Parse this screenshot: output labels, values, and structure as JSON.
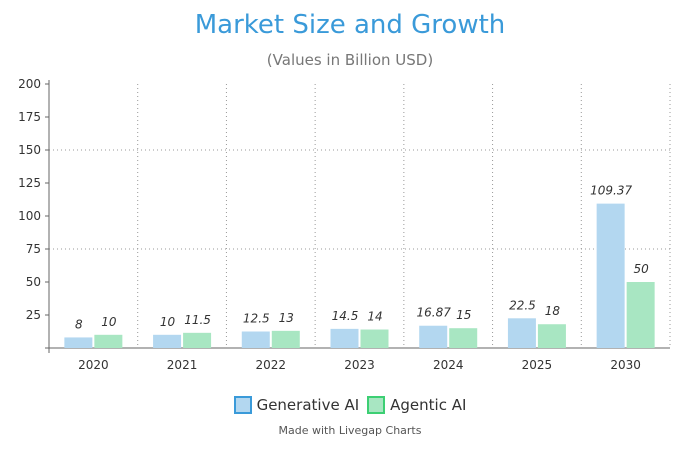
{
  "chart_data": {
    "type": "bar",
    "title": "Market Size and Growth",
    "subtitle": "(Values in Billion USD)",
    "categories": [
      "2020",
      "2021",
      "2022",
      "2023",
      "2024",
      "2025",
      "2030"
    ],
    "series": [
      {
        "name": "Generative AI",
        "values": [
          8,
          10,
          12.5,
          14.5,
          16.87,
          22.5,
          109.37
        ],
        "color": "#b3d7f0",
        "border": "#3a9ad9"
      },
      {
        "name": "Agentic AI",
        "values": [
          10,
          11.5,
          13,
          14,
          15,
          18,
          50
        ],
        "color": "#a8e6c2",
        "border": "#3ccf73"
      }
    ],
    "ylim": [
      0,
      200
    ],
    "yticks": [
      25,
      50,
      75,
      100,
      125,
      150,
      175,
      200
    ],
    "grid": "dotted",
    "legend": "bottom",
    "data_labels": true
  },
  "credit": "Made with Livegap Charts"
}
